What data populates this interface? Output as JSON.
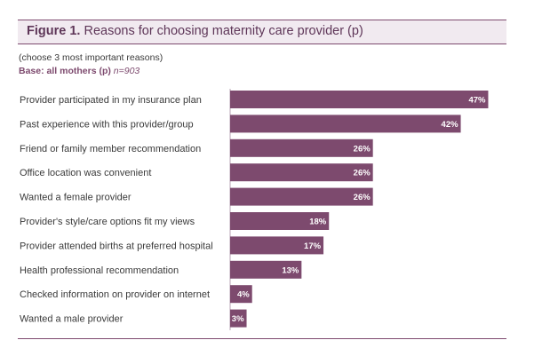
{
  "header": {
    "figure_label": "Figure 1.",
    "title": "Reasons for choosing maternity care provider (p)",
    "note": "(choose 3 most important reasons)",
    "base_label": "Base: all mothers (p)",
    "base_n": "n=903"
  },
  "chart_data": {
    "type": "bar",
    "orientation": "horizontal",
    "title": "Reasons for choosing maternity care provider (p)",
    "xlabel": "",
    "ylabel": "",
    "xlim": [
      0,
      50
    ],
    "value_suffix": "%",
    "bar_color": "#7d4a6e",
    "categories": [
      "Provider participated in my insurance plan",
      "Past experience with this provider/group",
      "Friend or family member recommendation",
      "Office location was convenient",
      "Wanted a female provider",
      "Provider's style/care options fit my views",
      "Provider attended births at preferred hospital",
      "Health professional recommendation",
      "Checked information on provider on internet",
      "Wanted a male provider"
    ],
    "values": [
      47,
      42,
      26,
      26,
      26,
      18,
      17,
      13,
      4,
      3
    ],
    "data_labels": [
      "47%",
      "42%",
      "26%",
      "26%",
      "26%",
      "18%",
      "17%",
      "13%",
      "4%",
      "3%"
    ]
  }
}
